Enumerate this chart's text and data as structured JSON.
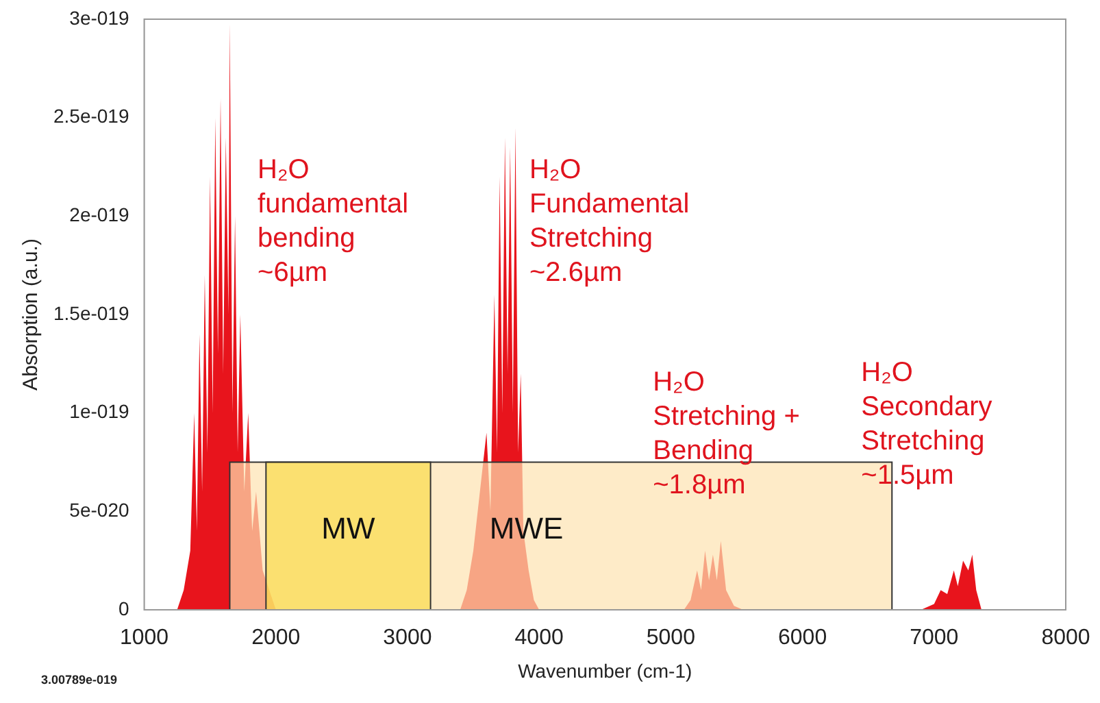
{
  "chart_data": {
    "type": "area",
    "xlabel": "Wavenumber (cm-1)",
    "ylabel": "Absorption (a.u.)",
    "x": [
      1000,
      1250,
      1300,
      1350,
      1380,
      1400,
      1420,
      1440,
      1460,
      1480,
      1500,
      1520,
      1540,
      1560,
      1580,
      1600,
      1620,
      1640,
      1650,
      1670,
      1690,
      1710,
      1730,
      1760,
      1790,
      1820,
      1850,
      1900,
      1950,
      2000,
      3400,
      3450,
      3500,
      3550,
      3600,
      3630,
      3660,
      3680,
      3700,
      3720,
      3740,
      3760,
      3780,
      3800,
      3820,
      3840,
      3860,
      3880,
      3920,
      3960,
      4000,
      5100,
      5150,
      5200,
      5230,
      5260,
      5290,
      5320,
      5350,
      5380,
      5420,
      5480,
      5550,
      6900,
      7000,
      7050,
      7100,
      7150,
      7180,
      7220,
      7260,
      7290,
      7320,
      7360,
      8000
    ],
    "series": [
      {
        "color": "#e8141c",
        "values": [
          0,
          0,
          1e-20,
          3e-20,
          1e-19,
          4e-20,
          1.4e-19,
          6e-20,
          1.7e-19,
          8e-20,
          2.2e-19,
          1e-19,
          2.5e-19,
          1.3e-19,
          2.6e-19,
          1.2e-19,
          2.4e-19,
          1.5e-19,
          2.98e-19,
          1e-19,
          2e-19,
          8e-20,
          1.5e-19,
          6e-20,
          1e-19,
          4e-20,
          6e-20,
          2e-20,
          1e-20,
          0,
          0,
          1e-20,
          3e-20,
          6e-20,
          9e-20,
          5e-20,
          1.6e-19,
          8e-20,
          2.2e-19,
          1e-19,
          2.4e-19,
          1.2e-19,
          2.35e-19,
          1e-19,
          2.45e-19,
          8e-20,
          1.2e-19,
          4e-20,
          2e-20,
          5e-21,
          0,
          0,
          5e-21,
          2e-20,
          1e-20,
          3e-20,
          1.5e-20,
          2.8e-20,
          1.5e-20,
          3.5e-20,
          1e-20,
          2e-21,
          0,
          0,
          3e-21,
          1e-20,
          8e-21,
          2e-20,
          1.2e-20,
          2.5e-20,
          2e-20,
          2.8e-20,
          1e-20,
          0,
          0
        ]
      }
    ],
    "xlim": [
      1000,
      8000
    ],
    "xticks": [
      1000,
      2000,
      3000,
      4000,
      5000,
      6000,
      7000,
      8000
    ],
    "ylim": [
      0,
      3e-19
    ],
    "yticks": [
      {
        "value": 0,
        "label": "0"
      },
      {
        "value": 5e-20,
        "label": "5e-020"
      },
      {
        "value": 1e-19,
        "label": "1e-019"
      },
      {
        "value": 1.5e-19,
        "label": "1.5e-019"
      },
      {
        "value": 2e-19,
        "label": "2e-019"
      },
      {
        "value": 2.5e-19,
        "label": "2.5e-019"
      },
      {
        "value": 3e-19,
        "label": "3e-019"
      }
    ],
    "grid": false,
    "legend": false,
    "bands": [
      {
        "axis": "x",
        "from": 1650,
        "to": 6680,
        "label": "MWE",
        "color": "#fde3b0"
      },
      {
        "axis": "x",
        "from": 1925,
        "to": 3175,
        "label": "MW",
        "color": "#fadb4a"
      }
    ],
    "annotations": [
      "H₂O\nfundamental\nbending\n~6µm",
      "H₂O\nFundamental\nStretching\n~2.6µm",
      "H₂O\nStretching +\nBending\n~1.8µm",
      "H₂O\nSecondary\nStretching\n~1.5µm",
      "3.00789e-019"
    ]
  }
}
